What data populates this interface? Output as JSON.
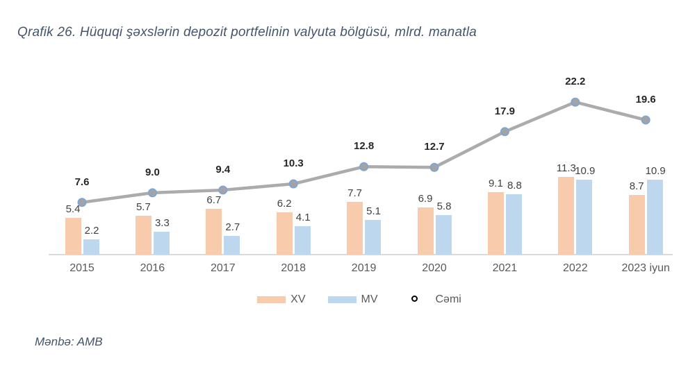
{
  "title": "Qrafik 26. Hüquqi şəxslərin depozit portfelinin valyuta bölgüsü, mlrd. manatla",
  "source": "Mənbə: AMB",
  "colors": {
    "xv_bar": "#F8CBAD",
    "mv_bar": "#BDD7EE",
    "total_line": "#ABABAB",
    "marker_fill": "#A3A3A3",
    "marker_border": "#7EA6D4",
    "axis_line": "#D9D9D9",
    "title_text": "#44546A",
    "bar_label_text": "#404040",
    "line_label_text": "#262626",
    "axis_label_text": "#595959"
  },
  "legend": [
    {
      "label": "XV",
      "type": "bar",
      "color": "#F8CBAD"
    },
    {
      "label": "MV",
      "type": "bar",
      "color": "#BDD7EE"
    },
    {
      "label": "Cəmi",
      "type": "line",
      "color": "#ABABAB"
    }
  ],
  "chart_data": {
    "type": "bar",
    "subtype": "grouped bars with total line overlay",
    "title": "Qrafik 26. Hüquqi şəxslərin depozit portfelinin valyuta bölgüsü, mlrd. manatla",
    "categories": [
      "2015",
      "2016",
      "2017",
      "2018",
      "2019",
      "2020",
      "2021",
      "2022",
      "2023 iyun"
    ],
    "series": [
      {
        "name": "XV",
        "type": "bar",
        "color": "#F8CBAD",
        "values": [
          5.4,
          5.7,
          6.7,
          6.2,
          7.7,
          6.9,
          9.1,
          11.3,
          8.7
        ]
      },
      {
        "name": "MV",
        "type": "bar",
        "color": "#BDD7EE",
        "values": [
          2.2,
          3.3,
          2.7,
          4.1,
          5.1,
          5.8,
          8.8,
          10.9,
          10.9
        ]
      },
      {
        "name": "Cəmi",
        "type": "line",
        "color": "#ABABAB",
        "values": [
          7.6,
          9.0,
          9.4,
          10.3,
          12.8,
          12.7,
          17.9,
          22.2,
          19.6
        ]
      }
    ],
    "xlabel": "",
    "ylabel": "",
    "ylim": [
      0,
      24
    ],
    "grid": false,
    "y_axis_visible": false,
    "data_labels": true,
    "legend_position": "bottom"
  }
}
